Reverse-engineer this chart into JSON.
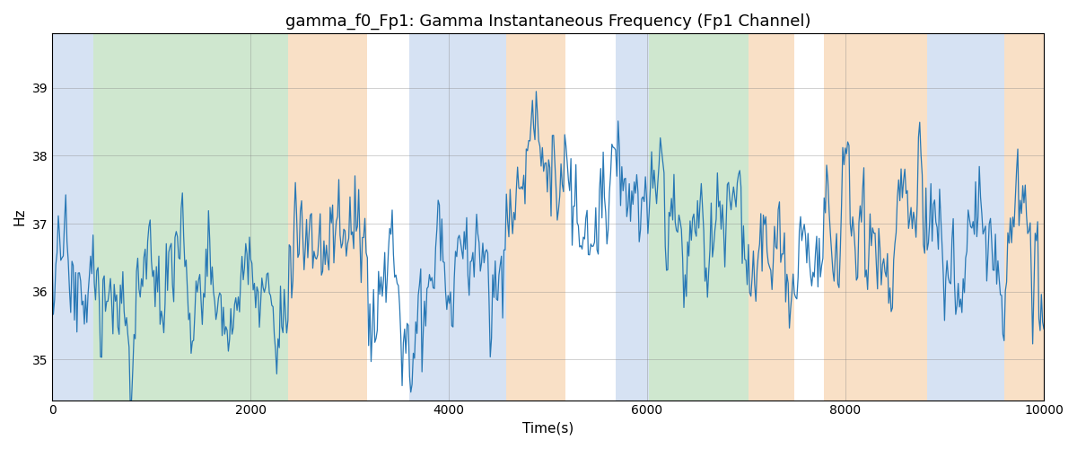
{
  "title": "gamma_f0_Fp1: Gamma Instantaneous Frequency (Fp1 Channel)",
  "xlabel": "Time(s)",
  "ylabel": "Hz",
  "xlim": [
    0,
    10000
  ],
  "ylim": [
    34.4,
    39.8
  ],
  "yticks": [
    35,
    36,
    37,
    38,
    39
  ],
  "xticks": [
    0,
    2000,
    4000,
    6000,
    8000,
    10000
  ],
  "line_color": "#2878b5",
  "line_width": 0.9,
  "bg_regions": [
    {
      "xmin": 0,
      "xmax": 420,
      "color": "#aec6e8",
      "alpha": 0.5
    },
    {
      "xmin": 420,
      "xmax": 2380,
      "color": "#a0d0a0",
      "alpha": 0.5
    },
    {
      "xmin": 2380,
      "xmax": 3180,
      "color": "#f5c897",
      "alpha": 0.55
    },
    {
      "xmin": 3600,
      "xmax": 4580,
      "color": "#aec6e8",
      "alpha": 0.5
    },
    {
      "xmin": 4580,
      "xmax": 5180,
      "color": "#f5c897",
      "alpha": 0.55
    },
    {
      "xmin": 5680,
      "xmax": 6020,
      "color": "#aec6e8",
      "alpha": 0.5
    },
    {
      "xmin": 6020,
      "xmax": 7020,
      "color": "#a0d0a0",
      "alpha": 0.5
    },
    {
      "xmin": 7020,
      "xmax": 7480,
      "color": "#f5c897",
      "alpha": 0.55
    },
    {
      "xmin": 7780,
      "xmax": 8820,
      "color": "#f5c897",
      "alpha": 0.55
    },
    {
      "xmin": 8820,
      "xmax": 9600,
      "color": "#aec6e8",
      "alpha": 0.5
    },
    {
      "xmin": 9600,
      "xmax": 10000,
      "color": "#f5c897",
      "alpha": 0.55
    }
  ],
  "seed": 17,
  "n_points": 800,
  "figsize": [
    12.0,
    5.0
  ],
  "dpi": 100,
  "title_fontsize": 13,
  "axis_label_fontsize": 11,
  "base_freq": 36.3,
  "ar_alpha": 0.78,
  "ar_scale": 0.55,
  "raw_scale": 0.18,
  "trend_scale": 0.6,
  "trend_period": 9000
}
